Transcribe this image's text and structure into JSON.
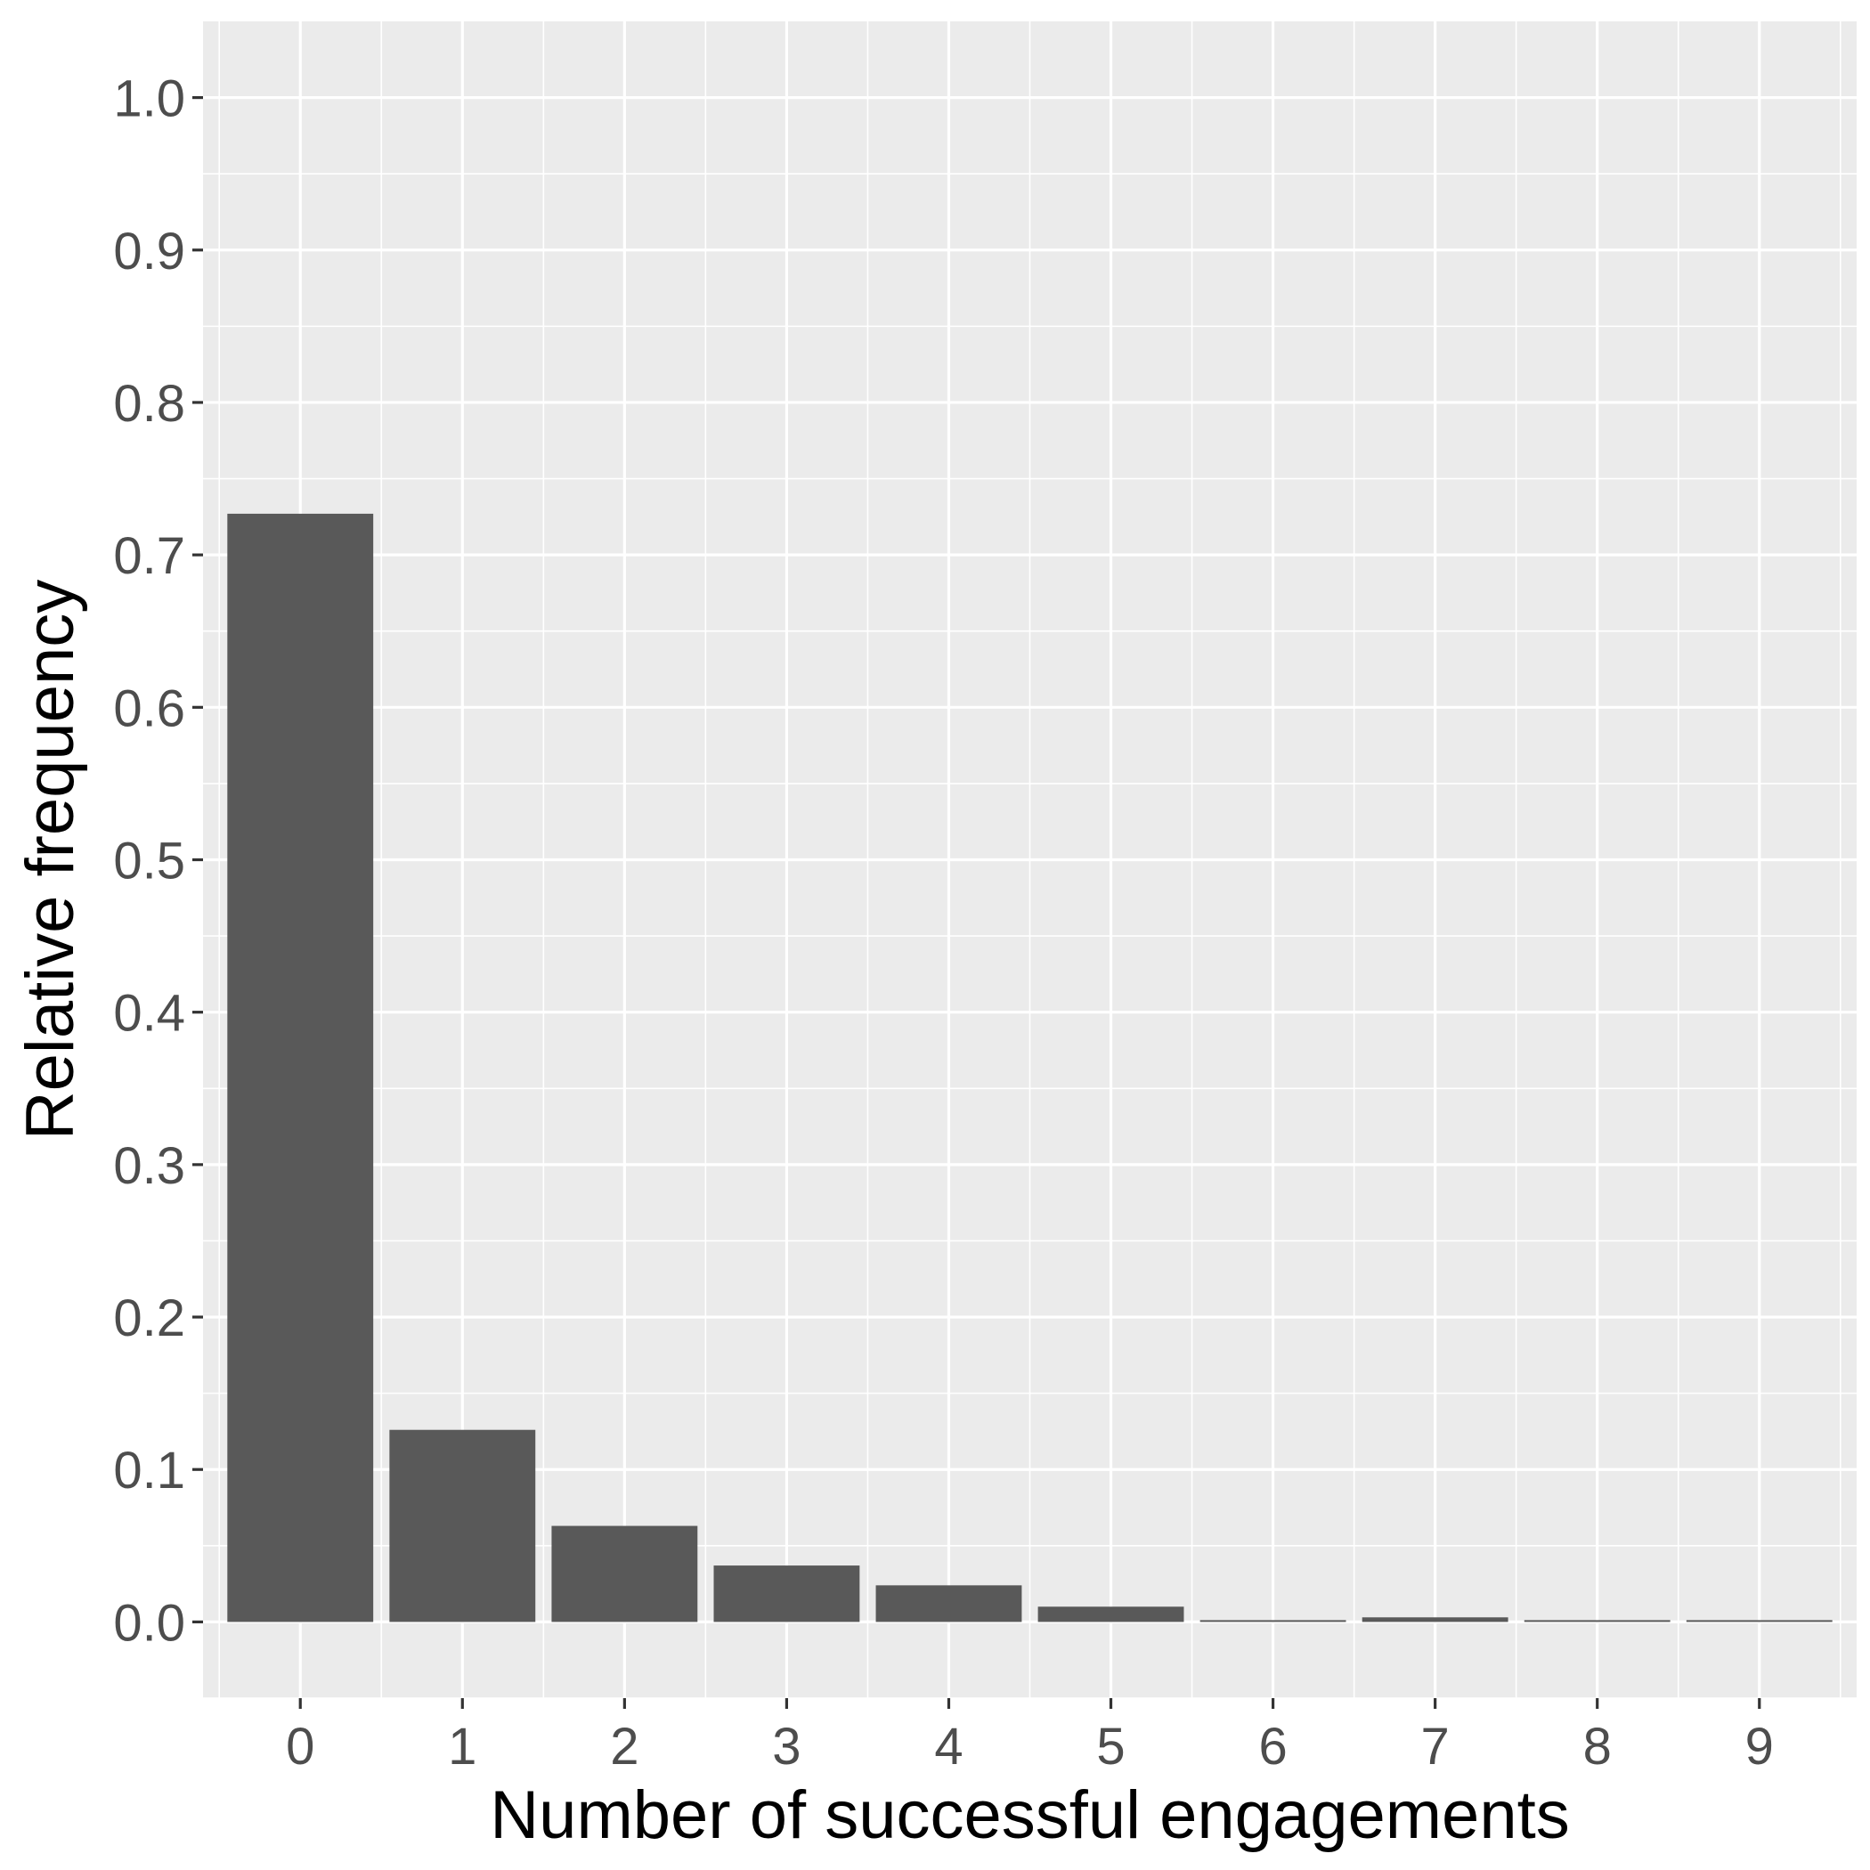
{
  "chart_data": {
    "type": "bar",
    "categories": [
      "0",
      "1",
      "2",
      "3",
      "4",
      "5",
      "6",
      "7",
      "8",
      "9"
    ],
    "values": [
      0.727,
      0.126,
      0.063,
      0.037,
      0.024,
      0.01,
      0.001,
      0.003,
      0.001,
      0.001
    ],
    "title": "",
    "xlabel": "Number of successful engagements",
    "ylabel": "Relative frequency",
    "ylim": [
      -0.05,
      1.05
    ],
    "yticks": [
      "0.0",
      "0.1",
      "0.2",
      "0.3",
      "0.4",
      "0.5",
      "0.6",
      "0.7",
      "0.8",
      "0.9",
      "1.0"
    ],
    "grid": true,
    "legend": "none",
    "colors": {
      "panel_background": "#ebebeb",
      "grid": "#ffffff",
      "bar_fill": "#595959",
      "tick_text": "#4d4d4d",
      "title_text": "#000000"
    }
  }
}
